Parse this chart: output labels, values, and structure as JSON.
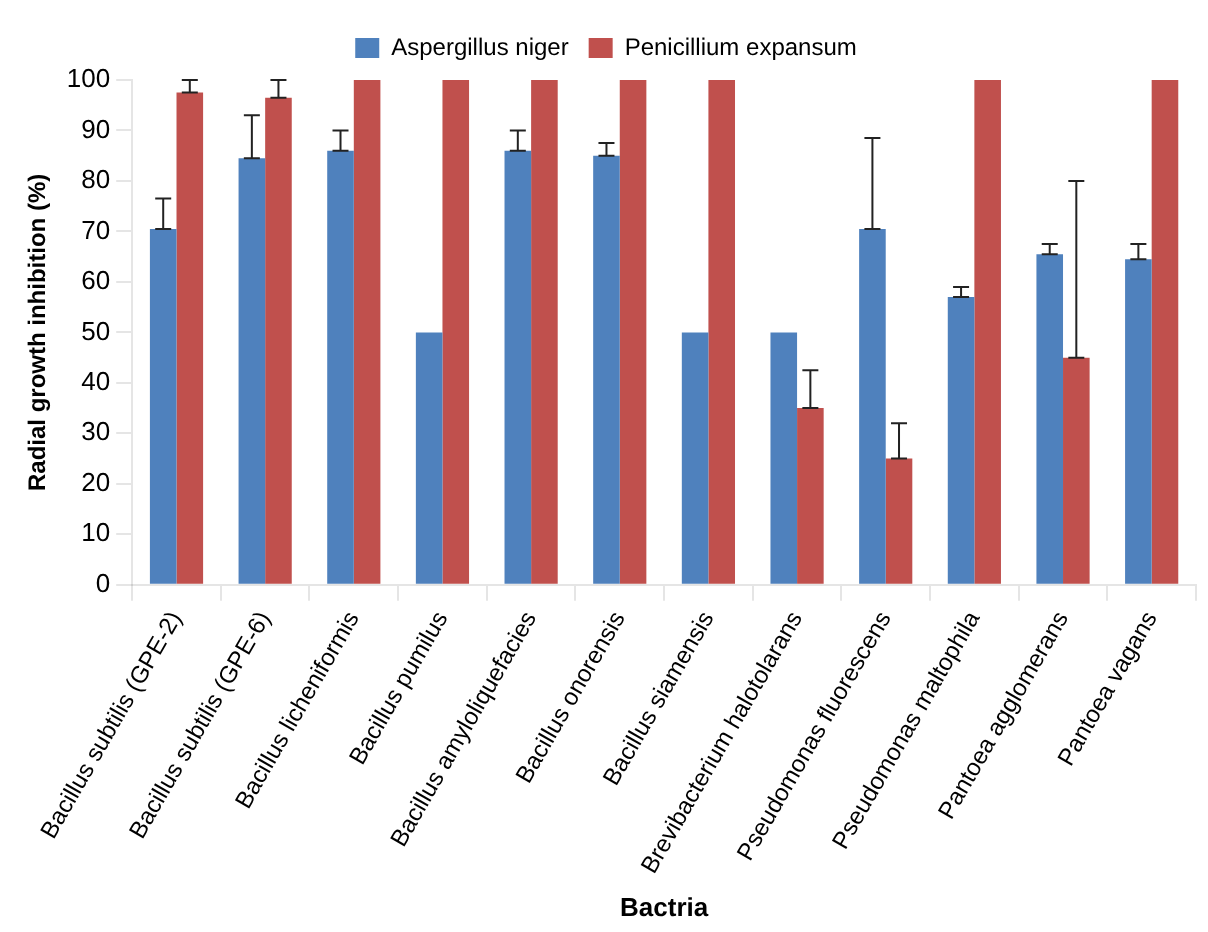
{
  "chart_data": {
    "type": "bar",
    "xlabel": "Bactria",
    "ylabel": "Radial growth inhibition (%)",
    "categories": [
      "Bacillus subtilis (GPE-2)",
      "Bacillus subtilis (GPE-6)",
      "Bacillus licheniformis",
      "Bacillus pumilus",
      "Bacillus amyloliquefacies",
      "Bacillus onorensis",
      "Bacillus siamensis",
      "Brevibacterium halotolarans",
      "Pseudomonas fluorescens",
      "Pseudomonas maltophila",
      "Pantoea agglomerans",
      "Pantoea vagans"
    ],
    "series": [
      {
        "name": "Aspergillus niger",
        "color": "#4f81bd",
        "values": [
          70.5,
          84.5,
          86,
          50,
          86,
          85,
          50,
          50,
          70.5,
          57,
          65.5,
          64.5
        ],
        "errors": [
          [
            70.5,
            76.5
          ],
          [
            84.5,
            93
          ],
          [
            86,
            90
          ],
          null,
          [
            86,
            90
          ],
          [
            85,
            87.5
          ],
          null,
          null,
          [
            70.5,
            88.5
          ],
          [
            57,
            59
          ],
          [
            65.5,
            67.5
          ],
          [
            64.5,
            67.5
          ]
        ]
      },
      {
        "name": "Penicillium expansum",
        "color": "#c0504d",
        "values": [
          97.5,
          96.5,
          100,
          100,
          100,
          100,
          100,
          35,
          25,
          100,
          45,
          100
        ],
        "errors": [
          [
            97.5,
            100
          ],
          [
            96.5,
            100
          ],
          null,
          null,
          null,
          null,
          null,
          [
            35,
            42.5
          ],
          [
            25,
            32
          ],
          null,
          [
            45,
            80
          ],
          null
        ]
      }
    ],
    "ylim": [
      0,
      100
    ],
    "yticks": [
      0,
      10,
      20,
      30,
      40,
      50,
      60,
      70,
      80,
      90,
      100
    ],
    "grid": false,
    "legend": "top"
  }
}
